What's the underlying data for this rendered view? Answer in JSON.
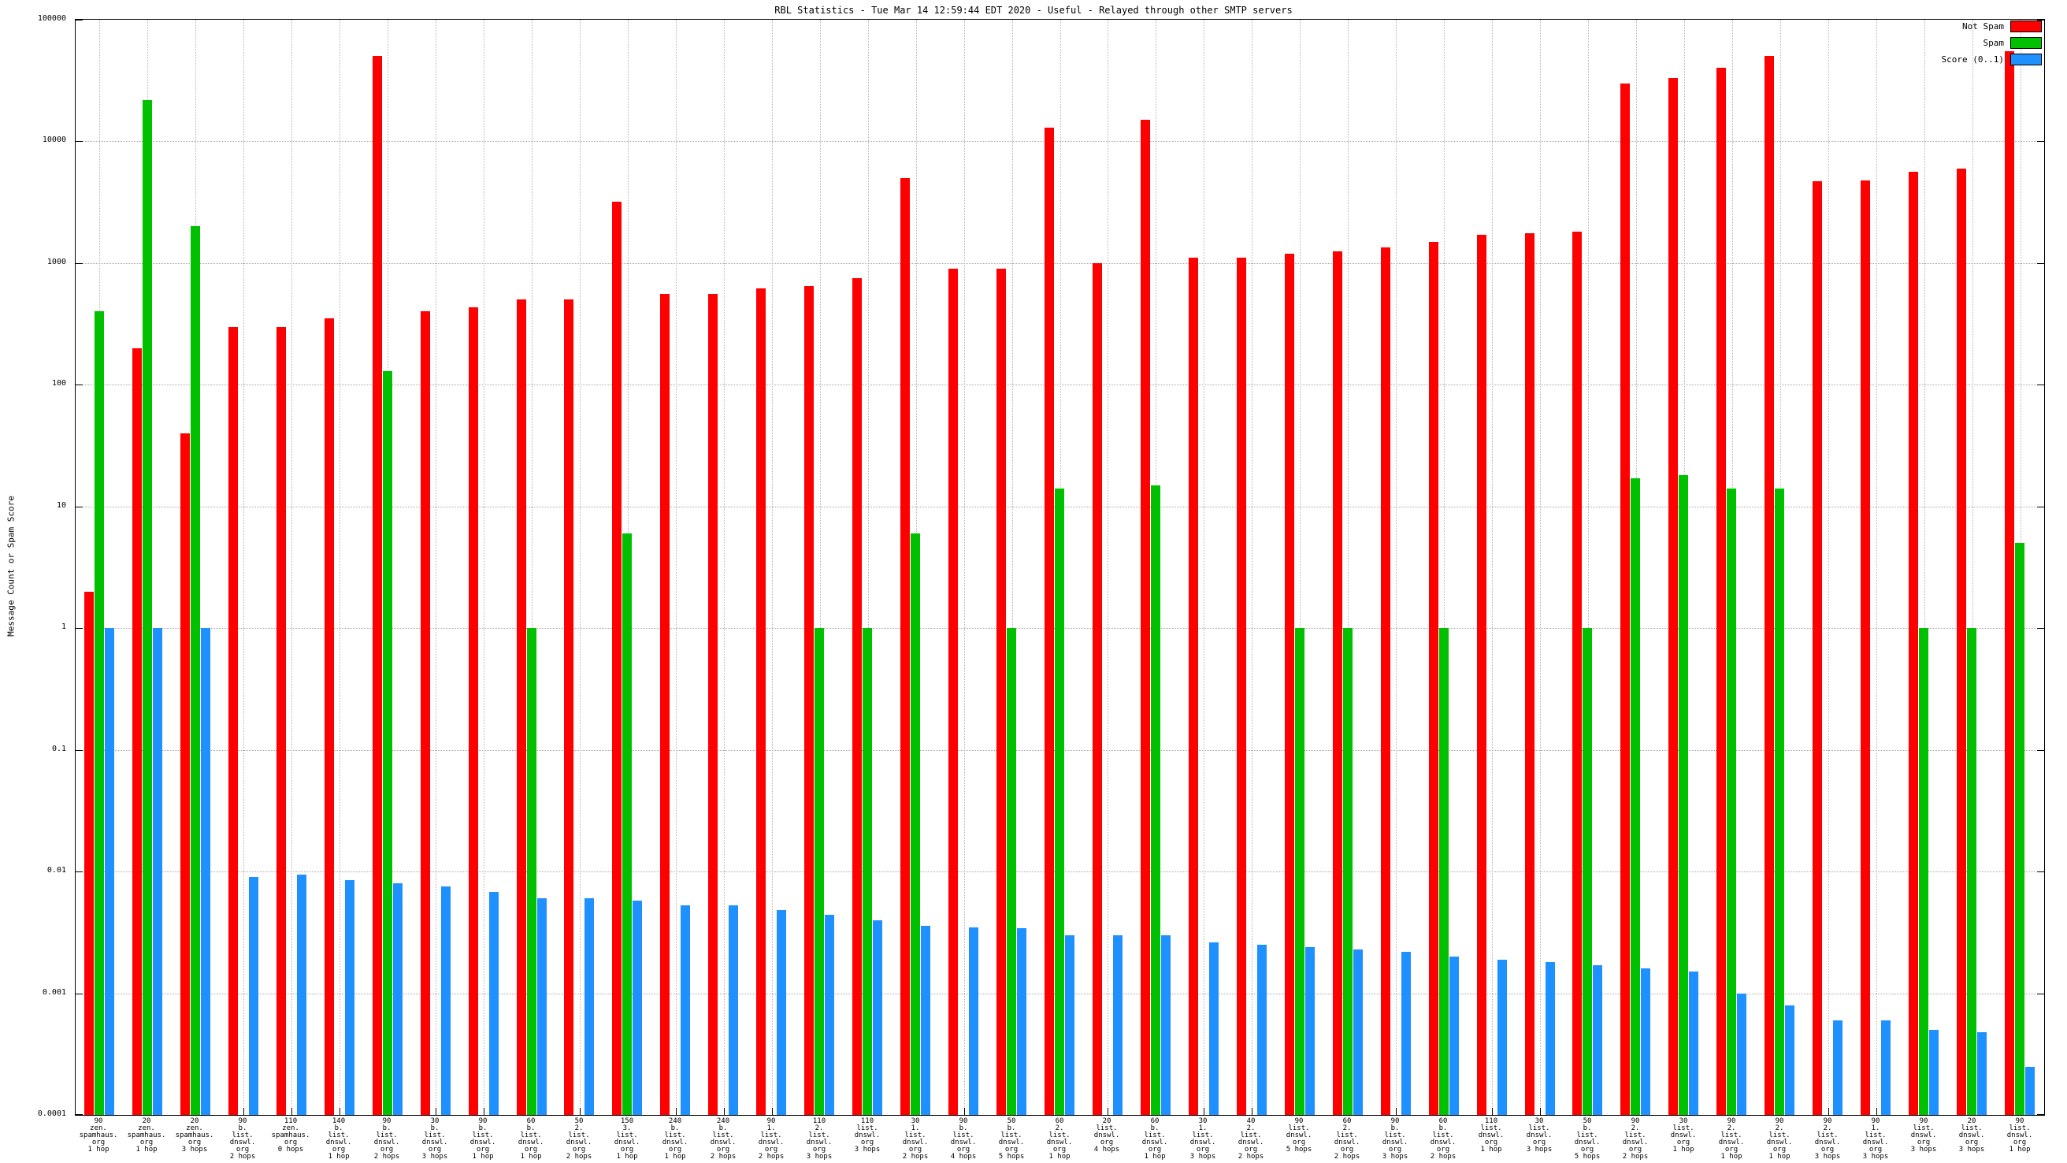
{
  "chart_data": {
    "type": "bar",
    "title": "RBL Statistics - Tue Mar 14 12:59:44 EDT 2020 - Useful - Relayed through other SMTP servers",
    "ylabel": "Message Count or Spam Score",
    "xlabel": "",
    "scale": "log",
    "grid": true,
    "legend_position": "top-right",
    "ylim": [
      0.0001,
      100000
    ],
    "yticks": [
      {
        "label": "100000",
        "value": 100000
      },
      {
        "label": "10000",
        "value": 10000
      },
      {
        "label": "1000",
        "value": 1000
      },
      {
        "label": "100",
        "value": 100
      },
      {
        "label": "10",
        "value": 10
      },
      {
        "label": "1",
        "value": 1
      },
      {
        "label": "0.1",
        "value": 0.1
      },
      {
        "label": "0.01",
        "value": 0.01
      },
      {
        "label": "0.001",
        "value": 0.001
      },
      {
        "label": "0.0001",
        "value": 0.0001
      }
    ],
    "categories": [
      "90\nzen.\nspamhaus.\norg\n1 hop",
      "20\nzen.\nspamhaus.\norg\n1 hop",
      "20\nzen.\nspamhaus.\norg\n3 hops",
      "90\nb.\nlist.\ndnswl.\norg\n2 hops",
      "110\nzen.\nspamhaus.\norg\n0 hops",
      "140\nb.\nlist.\ndnswl.\norg\n1 hop",
      "90\nb.\nlist.\ndnswl.\norg\n2 hops",
      "30\nb.\nlist.\ndnswl.\norg\n3 hops",
      "90\nb.\nlist.\ndnswl.\norg\n1 hop",
      "60\nb.\nlist.\ndnswl.\norg\n1 hop",
      "50\n2.\nlist.\ndnswl.\norg\n2 hops",
      "150\n3.\nlist.\ndnswl.\norg\n1 hop",
      "240\nb.\nlist.\ndnswl.\norg\n1 hop",
      "240\nb.\nlist.\ndnswl.\norg\n2 hops",
      "90\n1.\nlist.\ndnswl.\norg\n2 hops",
      "110\n2.\nlist.\ndnswl.\norg\n3 hops",
      "110\nlist.\ndnswl.\norg\n3 hops",
      "30\n1.\nlist.\ndnswl.\norg\n2 hops",
      "90\nb.\nlist.\ndnswl.\norg\n4 hops",
      "50\nb.\nlist.\ndnswl.\norg\n5 hops",
      "60\n2.\nlist.\ndnswl.\norg\n1 hop",
      "20\nlist.\ndnswl.\norg\n4 hops",
      "60\nb.\nlist.\ndnswl.\norg\n1 hop",
      "30\n1.\nlist.\ndnswl.\norg\n3 hops",
      "40\n2.\nlist.\ndnswl.\norg\n2 hops",
      "90\nlist.\ndnswl.\norg\n5 hops",
      "60\n2.\nlist.\ndnswl.\norg\n2 hops",
      "90\nb.\nlist.\ndnswl.\norg\n3 hops",
      "60\nb.\nlist.\ndnswl.\norg\n2 hops",
      "110\nlist.\ndnswl.\norg\n1 hop",
      "30\nlist.\ndnswl.\norg\n3 hops",
      "50\nb.\nlist.\ndnswl.\norg\n5 hops",
      "90\n2.\nlist.\ndnswl.\norg\n2 hops",
      "30\nlist.\ndnswl.\norg\n1 hop",
      "90\n2.\nlist.\ndnswl.\norg\n1 hop",
      "90\n2.\nlist.\ndnswl.\norg\n1 hop",
      "90\n2.\nlist.\ndnswl.\norg\n3 hops",
      "90\n1.\nlist.\ndnswl.\norg\n3 hops",
      "90\nlist.\ndnswl.\norg\n3 hops",
      "20\nlist.\ndnswl.\norg\n3 hops",
      "90\nlist.\ndnswl.\norg\n1 hop"
    ],
    "series": [
      {
        "name": "Not Spam",
        "color": "#ff0000",
        "values": [
          2,
          200,
          40,
          300,
          300,
          350,
          50000,
          400,
          430,
          500,
          500,
          3200,
          560,
          560,
          620,
          650,
          750,
          5000,
          900,
          900,
          13000,
          1000,
          15000,
          1100,
          1100,
          1200,
          1250,
          1350,
          1500,
          1700,
          1750,
          1800,
          30000,
          33000,
          40000,
          50000,
          4700,
          4800,
          5600,
          6000,
          55000
        ]
      },
      {
        "name": "Spam",
        "color": "#00c000",
        "values": [
          400,
          22000,
          2000,
          0,
          0,
          0,
          130,
          0,
          0,
          1,
          0,
          6,
          0,
          0,
          0,
          1,
          1,
          6,
          0,
          1,
          14,
          0,
          15,
          0,
          0,
          1,
          1,
          0,
          1,
          0,
          0,
          1,
          17,
          18,
          14,
          14,
          0,
          0,
          1,
          1,
          5
        ]
      },
      {
        "name": "Score (0..1)",
        "color": "#1e90ff",
        "values": [
          1,
          1,
          1,
          0.009,
          0.0095,
          0.0085,
          0.008,
          0.0075,
          0.0068,
          0.006,
          0.006,
          0.0058,
          0.0053,
          0.0053,
          0.0048,
          0.0044,
          0.004,
          0.0036,
          0.0035,
          0.0034,
          0.003,
          0.003,
          0.003,
          0.0026,
          0.0025,
          0.0024,
          0.0023,
          0.0022,
          0.002,
          0.0019,
          0.0018,
          0.0017,
          0.0016,
          0.0015,
          0.001,
          0.0008,
          0.0006,
          0.0006,
          0.0005,
          0.00048,
          0.00025
        ]
      }
    ]
  }
}
